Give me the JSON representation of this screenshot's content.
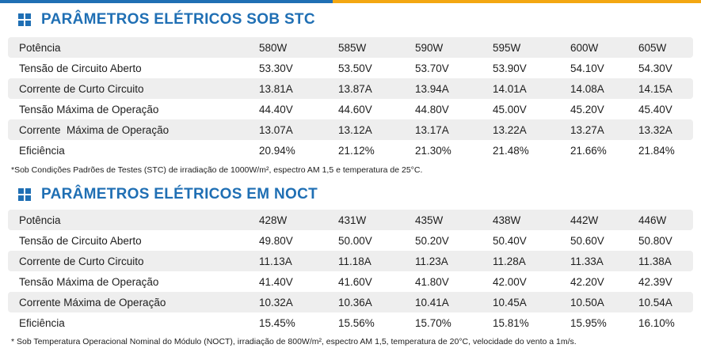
{
  "stc": {
    "title": "PARÂMETROS ELÉTRICOS SOB STC",
    "rows": [
      {
        "label": "Potência",
        "values": [
          "580W",
          "585W",
          "590W",
          "595W",
          "600W",
          "605W"
        ]
      },
      {
        "label": "Tensão de Circuito Aberto",
        "values": [
          "53.30V",
          "53.50V",
          "53.70V",
          "53.90V",
          "54.10V",
          "54.30V"
        ]
      },
      {
        "label": "Corrente de Curto Circuito",
        "values": [
          "13.81A",
          "13.87A",
          "13.94A",
          "14.01A",
          "14.08A",
          "14.15A"
        ]
      },
      {
        "label": "Tensão Máxima de Operação",
        "values": [
          "44.40V",
          "44.60V",
          "44.80V",
          "45.00V",
          "45.20V",
          "45.40V"
        ]
      },
      {
        "label": "Corrente  Máxima de Operação",
        "values": [
          "13.07A",
          "13.12A",
          "13.17A",
          "13.22A",
          "13.27A",
          "13.32A"
        ]
      },
      {
        "label": "Eficiência",
        "values": [
          "20.94%",
          "21.12%",
          "21.30%",
          "21.48%",
          "21.66%",
          "21.84%"
        ]
      }
    ],
    "note": "*Sob Condições Padrões de Testes (STC) de irradiação de 1000W/m²,  espectro AM 1,5 e temperatura de 25°C."
  },
  "noct": {
    "title": "PARÂMETROS ELÉTRICOS EM NOCT",
    "rows": [
      {
        "label": "Potência",
        "values": [
          "428W",
          "431W",
          "435W",
          "438W",
          "442W",
          "446W"
        ]
      },
      {
        "label": "Tensão de Circuito Aberto",
        "values": [
          "49.80V",
          "50.00V",
          "50.20V",
          "50.40V",
          "50.60V",
          "50.80V"
        ]
      },
      {
        "label": "Corrente de Curto Circuito",
        "values": [
          "11.13A",
          "11.18A",
          "11.23A",
          "11.28A",
          "11.33A",
          "11.38A"
        ]
      },
      {
        "label": "Tensão Máxima de Operação",
        "values": [
          "41.40V",
          "41.60V",
          "41.80V",
          "42.00V",
          "42.20V",
          "42.39V"
        ]
      },
      {
        "label": "Corrente Máxima de Operação",
        "values": [
          "10.32A",
          "10.36A",
          "10.41A",
          "10.45A",
          "10.50A",
          "10.54A"
        ]
      },
      {
        "label": "Eficiência",
        "values": [
          "15.45%",
          "15.56%",
          "15.70%",
          "15.81%",
          "15.95%",
          "16.10%"
        ]
      }
    ],
    "note": "* Sob Temperatura Operacional Nominal do Módulo (NOCT), irradiação de 800W/m², espectro AM 1,5, temperatura de 20°C, velocidade do vento a 1m/s."
  },
  "colors": {
    "accent": "#1f6fb4",
    "bar_secondary": "#f3a712",
    "row_shade": "#eeeeee"
  },
  "icons": {
    "section": "grid-squares-icon"
  }
}
